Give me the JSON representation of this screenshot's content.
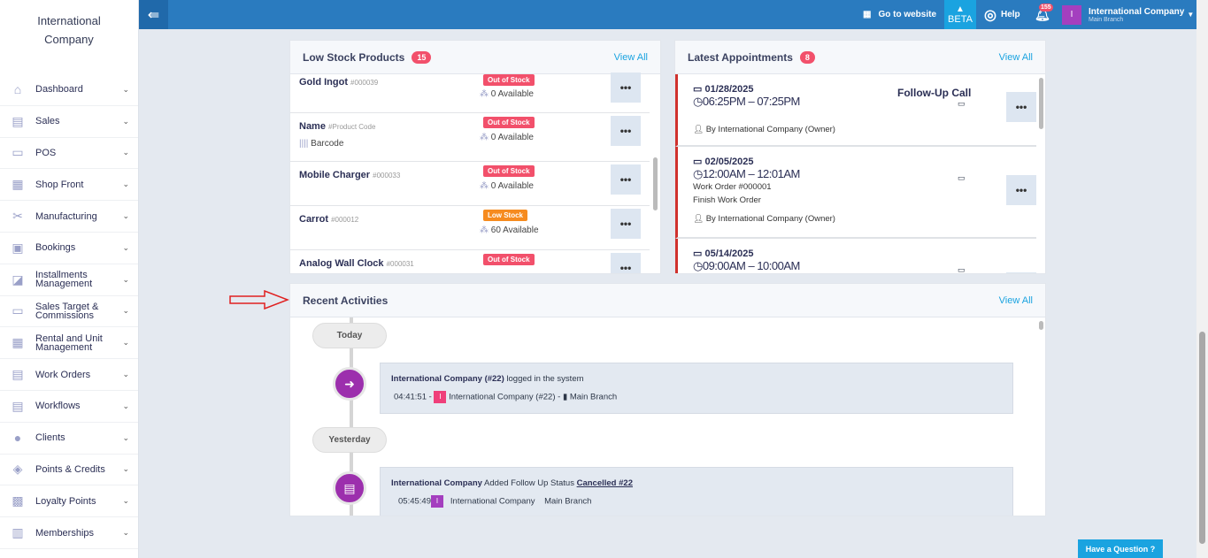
{
  "sidebar": {
    "brand_line1": "International",
    "brand_line2": "Company",
    "items": [
      {
        "label": "Dashboard",
        "icon": "home-icon"
      },
      {
        "label": "Sales",
        "icon": "receipt-icon"
      },
      {
        "label": "POS",
        "icon": "laptop-icon"
      },
      {
        "label": "Shop Front",
        "icon": "store-icon"
      },
      {
        "label": "Manufacturing",
        "icon": "tools-icon"
      },
      {
        "label": "Bookings",
        "icon": "calendar-icon"
      },
      {
        "label": "Installments Management",
        "icon": "installments-icon"
      },
      {
        "label": "Sales Target & Commissions",
        "icon": "money-icon"
      },
      {
        "label": "Rental and Unit Management",
        "icon": "rental-icon"
      },
      {
        "label": "Work Orders",
        "icon": "clipboard-icon"
      },
      {
        "label": "Workflows",
        "icon": "clipboard-icon"
      },
      {
        "label": "Clients",
        "icon": "user-icon"
      },
      {
        "label": "Points & Credits",
        "icon": "layers-icon"
      },
      {
        "label": "Loyalty Points",
        "icon": "gift-icon"
      },
      {
        "label": "Memberships",
        "icon": "id-card-icon"
      }
    ]
  },
  "topbar": {
    "go_to_website": "Go to website",
    "beta": "BETA",
    "help": "Help",
    "notifications": "155",
    "avatar_letter": "I",
    "user": "International Company",
    "branch": "Main Branch"
  },
  "low_stock": {
    "title": "Low Stock Products",
    "count": "15",
    "view_all": "View All",
    "items": [
      {
        "name": "Gold Ingot",
        "code": "#000039",
        "barcode": "",
        "status": "Out of Stock",
        "available": "0 Available"
      },
      {
        "name": "Name",
        "code": "#Product Code",
        "barcode": "Barcode",
        "status": "Out of Stock",
        "available": "0 Available"
      },
      {
        "name": "Mobile Charger",
        "code": "#000033",
        "barcode": "",
        "status": "Out of Stock",
        "available": "0 Available"
      },
      {
        "name": "Carrot",
        "code": "#000012",
        "barcode": "",
        "status": "Low Stock",
        "available": "60 Available"
      },
      {
        "name": "Analog Wall Clock",
        "code": "#000031",
        "barcode": "",
        "status": "Out of Stock",
        "available": ""
      }
    ]
  },
  "appointments": {
    "title": "Latest Appointments",
    "count": "8",
    "view_all": "View All",
    "items": [
      {
        "date": "01/28/2025",
        "time": "06:25PM – 07:25PM",
        "title": "Follow-Up Call",
        "line1": "",
        "line2": "",
        "by": "By International Company (Owner)"
      },
      {
        "date": "02/05/2025",
        "time": "12:00AM – 12:01AM",
        "title": "",
        "line1": "Work Order #000001",
        "line2": "Finish Work Order",
        "by": "By International Company (Owner)"
      },
      {
        "date": "05/14/2025",
        "time": "09:00AM – 10:00AM",
        "title": "",
        "line1": "",
        "line2": "",
        "by": ""
      }
    ]
  },
  "activities": {
    "title": "Recent Activities",
    "view_all": "View All",
    "today": "Today",
    "yesterday": "Yesterday",
    "a1": {
      "actor": "International Company (#22)",
      "text": " logged in the system",
      "time": "04:41:51 -",
      "letter": "I",
      "user": "International Company (#22) -",
      "branch": "Main Branch"
    },
    "a2": {
      "actor": "International Company",
      "text": " Added Follow Up Status ",
      "link": "Cancelled #22",
      "time": "05:45:49",
      "letter": "I",
      "user": "International Company",
      "branch": "Main Branch"
    }
  },
  "help_button": "Have a Question",
  "colors": {
    "topbar": "#2a7bbf",
    "out_of_stock": "#f2506b",
    "low_stock": "#f68b1f",
    "timeline_icon": "#9c2fad"
  }
}
